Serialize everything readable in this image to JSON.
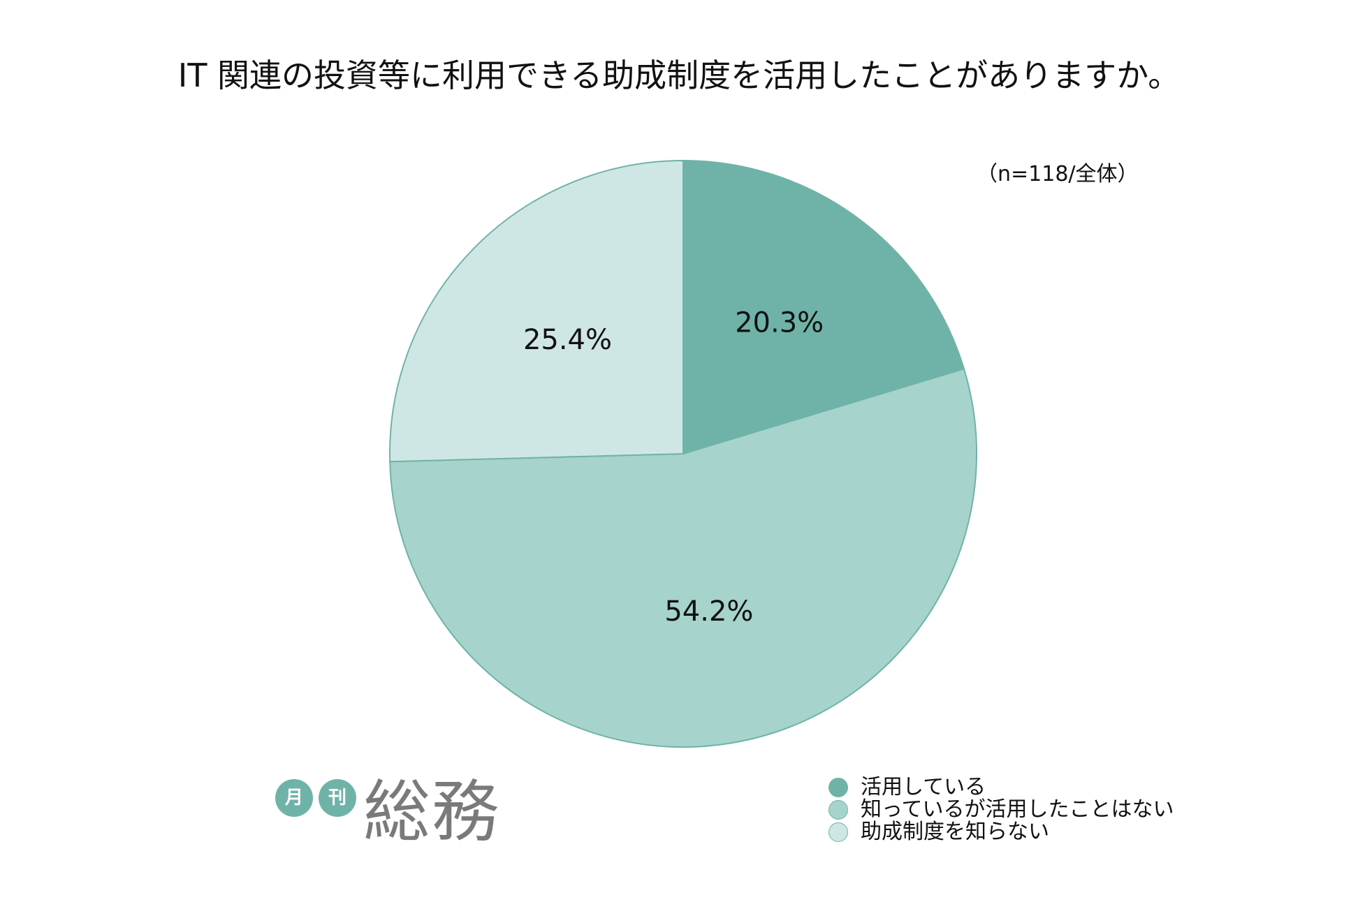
{
  "chart_data": {
    "type": "pie",
    "title": "IT 関連の投資等に利用できる助成制度を活用したことがありますか。",
    "note": "（n=118/全体）",
    "categories": [
      "活用している",
      "知っているが活用したことはない",
      "助成制度を知らない"
    ],
    "values": [
      20.3,
      54.2,
      25.4
    ],
    "value_labels": [
      "20.3%",
      "54.2%",
      "25.4%"
    ],
    "colors": [
      "#6fb3a8",
      "#a6d3cc",
      "#cfe7e4"
    ],
    "stroke_color": "#6fb3a8",
    "start_angle": "12 o'clock",
    "direction": "clockwise",
    "legend_position": "bottom-right"
  },
  "logo": {
    "badge1": "月",
    "badge2": "刊",
    "name": "総務",
    "badge_color": "#6fb3a8",
    "text_color": "#7a7a7a"
  }
}
